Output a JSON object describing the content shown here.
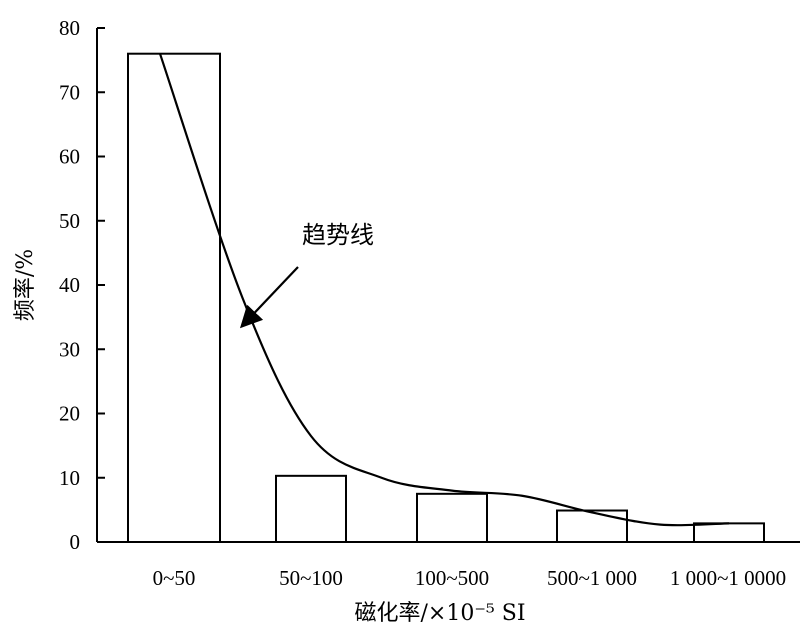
{
  "chart_data": {
    "type": "bar",
    "title": "",
    "xlabel": "磁化率/×10⁻⁵ SI",
    "ylabel": "频率/%",
    "categories": [
      "0~50",
      "50~100",
      "100~500",
      "500~1 000",
      "1 000~1 0000"
    ],
    "values": [
      76,
      10.3,
      7.5,
      4.9,
      2.9
    ],
    "ylim": [
      0,
      80
    ],
    "yticks": [
      "0",
      "10",
      "20",
      "30",
      "40",
      "50",
      "60",
      "70",
      "80"
    ],
    "grid": false,
    "bar_fill": "#ffffff",
    "bar_stroke": "#000000",
    "trend": {
      "label": "趋势线",
      "x": [
        0,
        0.5,
        1,
        1.5,
        2,
        2.5,
        3,
        3.5,
        4
      ],
      "y": [
        76,
        38,
        16.5,
        10,
        8,
        7.2,
        4.6,
        2.7,
        2.9
      ]
    }
  }
}
